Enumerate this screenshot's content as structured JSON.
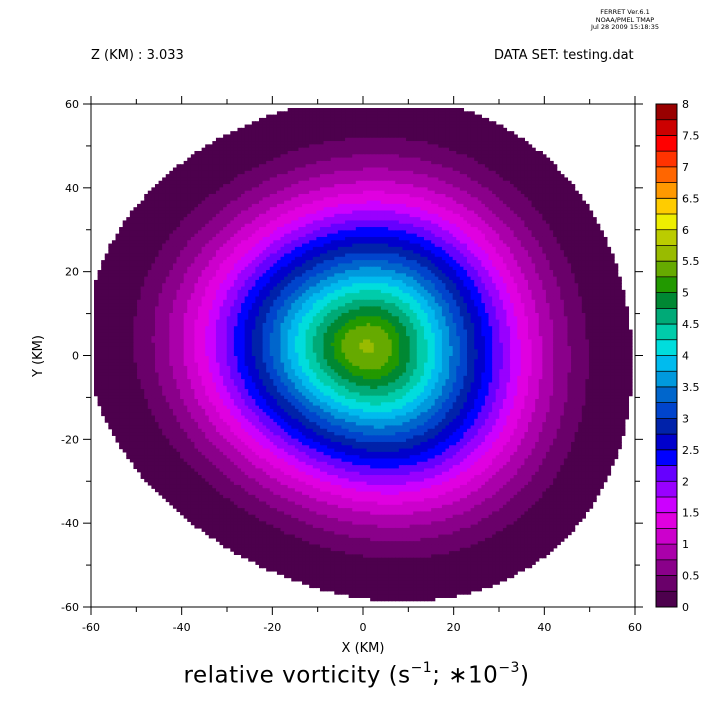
{
  "header": {
    "z_label": "Z (KM) : 3.033",
    "dataset_label": "DATA SET: testing.dat",
    "meta_line1": "FERRET  Ver.6.1",
    "meta_line2": "NOAA/PMEL TMAP",
    "meta_line3": "Jul 28 2009 15:18:35"
  },
  "title": {
    "prefix": "relative vorticity (s",
    "sup1": "−1",
    "middle": "; ∗10",
    "sup2": "−3",
    "suffix": ")"
  },
  "chart_data": {
    "type": "heatmap",
    "xlabel": "X (KM)",
    "ylabel": "Y (KM)",
    "xlim": [
      -60,
      60
    ],
    "ylim": [
      -60,
      60
    ],
    "x_ticks": [
      -60,
      -40,
      -20,
      0,
      20,
      40,
      60
    ],
    "y_ticks": [
      -60,
      -40,
      -20,
      0,
      20,
      40,
      60
    ],
    "colorbar": {
      "levels": [
        0,
        0.25,
        0.5,
        0.75,
        1,
        1.25,
        1.5,
        1.75,
        2,
        2.25,
        2.5,
        2.75,
        3,
        3.25,
        3.5,
        3.75,
        4,
        4.25,
        4.5,
        4.75,
        5,
        5.25,
        5.5,
        5.75,
        6,
        6.25,
        6.5,
        6.75,
        7,
        7.25,
        7.5,
        7.75,
        8
      ],
      "tick_labels": [
        "0",
        "0.5",
        "1",
        "1.5",
        "2",
        "2.5",
        "3",
        "3.5",
        "4",
        "4.5",
        "5",
        "5.5",
        "6",
        "6.5",
        "7",
        "7.5",
        "8"
      ],
      "colors": [
        "#4d004d",
        "#6a006a",
        "#8a008a",
        "#aa00aa",
        "#cc00cc",
        "#e000e0",
        "#cc00ff",
        "#9900ff",
        "#6600ff",
        "#0000ff",
        "#0000cc",
        "#0022aa",
        "#0044cc",
        "#0066cc",
        "#0099dd",
        "#00bbee",
        "#00dddd",
        "#00ccaa",
        "#00aa77",
        "#008833",
        "#229900",
        "#66aa00",
        "#99bb00",
        "#bbcc00",
        "#eeee00",
        "#ffcc00",
        "#ff9900",
        "#ff6600",
        "#ff3300",
        "#ff0000",
        "#cc0000",
        "#990000"
      ]
    },
    "field": {
      "description_type": "radial_vortex",
      "center": [
        1,
        2
      ],
      "peak_value": 5.6,
      "profile_r_km": [
        0,
        5,
        10,
        15,
        20,
        25,
        30,
        35,
        40,
        45,
        50,
        55,
        60,
        70,
        85
      ],
      "profile_value": [
        5.6,
        5.3,
        4.7,
        4.05,
        3.35,
        2.7,
        2.05,
        1.45,
        0.95,
        0.55,
        0.25,
        0.08,
        0.0,
        -0.05,
        -0.08
      ]
    }
  }
}
